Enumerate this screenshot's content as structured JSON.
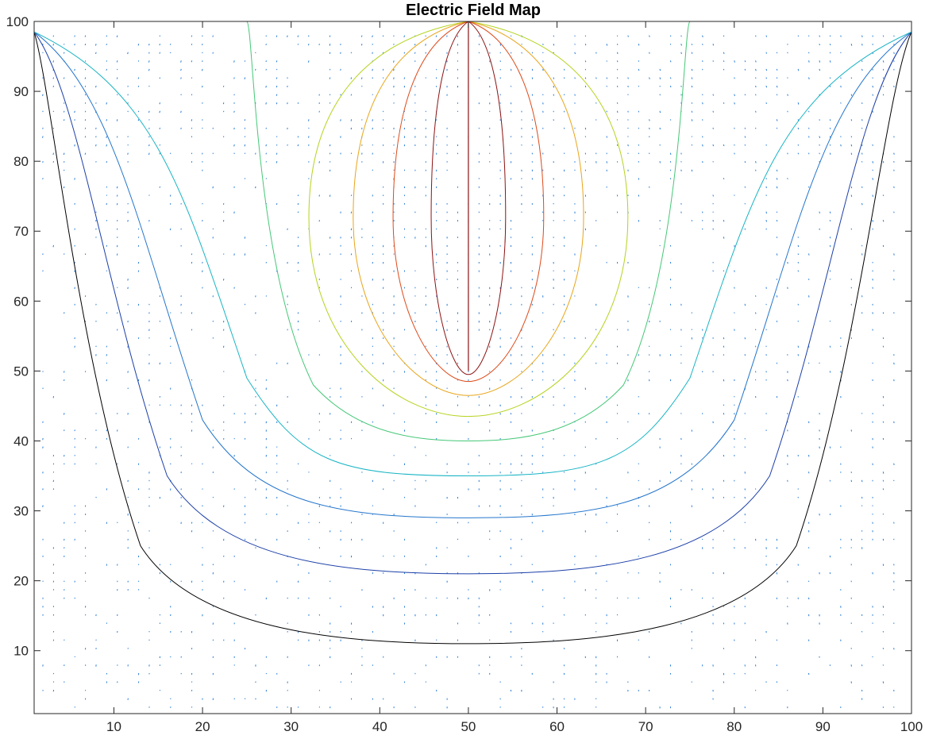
{
  "chart_data": {
    "type": "contour",
    "title": "Electric Field Map",
    "xlabel": "",
    "ylabel": "",
    "xlim": [
      1,
      100
    ],
    "ylim": [
      1,
      100
    ],
    "xticks": [
      10,
      20,
      30,
      40,
      50,
      60,
      70,
      80,
      90,
      100
    ],
    "yticks": [
      10,
      20,
      30,
      40,
      50,
      60,
      70,
      80,
      90,
      100
    ],
    "grid": false,
    "source": {
      "x": 50,
      "y_from": 50,
      "y_to": 100
    },
    "contour_levels": [
      {
        "color": "#000000",
        "bottom_y": 11,
        "half_width": 49
      },
      {
        "color": "#1c3fa8",
        "bottom_y": 21,
        "half_width": 46
      },
      {
        "color": "#2476cc",
        "bottom_y": 29,
        "half_width": 42
      },
      {
        "color": "#17b4c4",
        "bottom_y": 35,
        "half_width": 37
      },
      {
        "color": "#45c777",
        "bottom_y": 40,
        "half_width": 24.5,
        "open_top": true
      },
      {
        "color": "#b5d31e",
        "bottom_y": 43.5,
        "half_width": 18
      },
      {
        "color": "#e9a51a",
        "bottom_y": 46.5,
        "half_width": 13
      },
      {
        "color": "#dd4a1a",
        "bottom_y": 48.5,
        "half_width": 8.5
      },
      {
        "color": "#8c1212",
        "bottom_y": 49.5,
        "half_width": 4.2
      }
    ],
    "quiver_color": "#2a7dd6"
  }
}
